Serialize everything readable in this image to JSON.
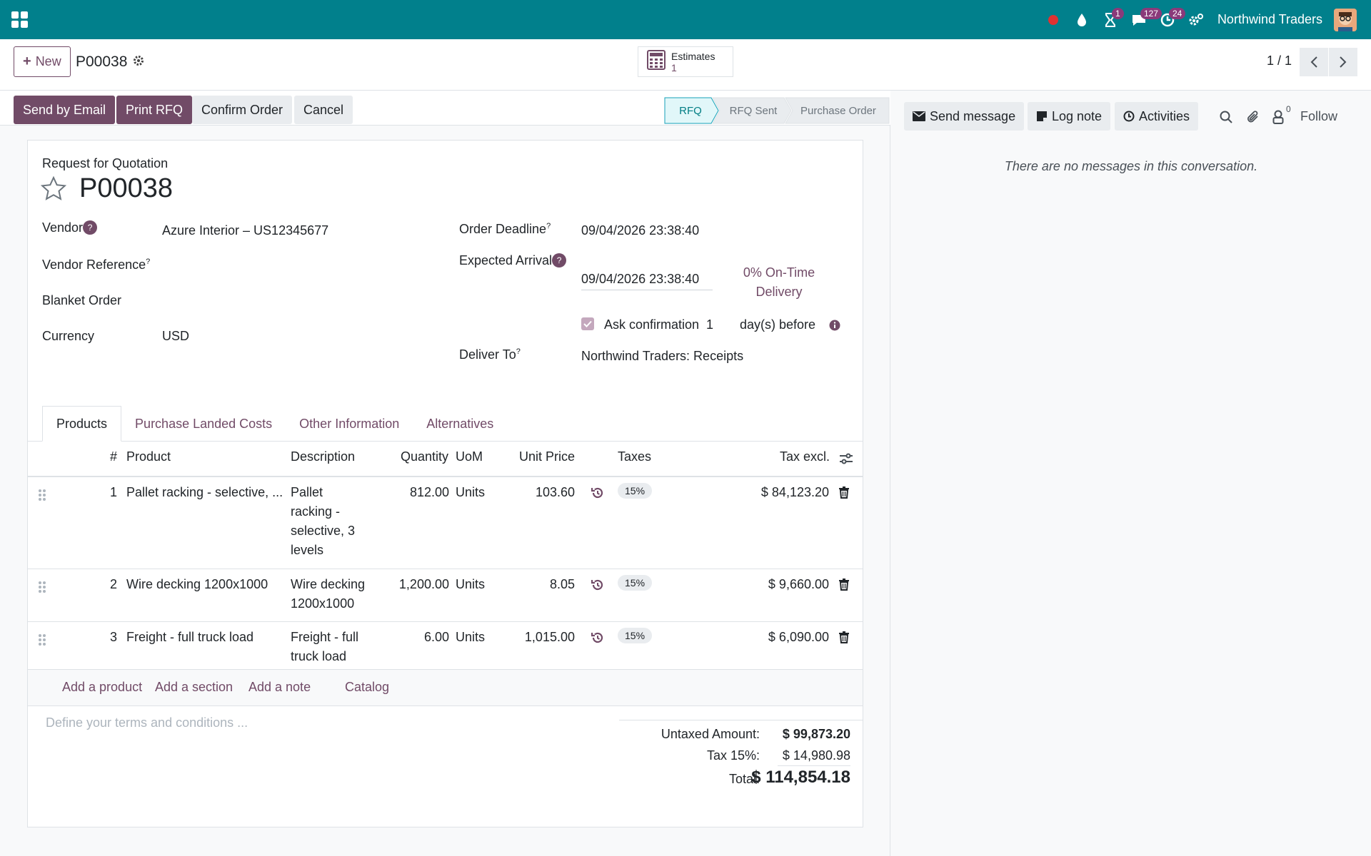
{
  "navbar": {
    "company": "Northwind Traders",
    "badges": {
      "activity": "1",
      "messages": "127",
      "timer": "24"
    }
  },
  "control": {
    "new_label": "New",
    "record_name": "P00038",
    "smart_button": {
      "label": "Estimates",
      "count": "1"
    },
    "pager": "1 / 1"
  },
  "actions": {
    "send_email": "Send by Email",
    "print_rfq": "Print RFQ",
    "confirm": "Confirm Order",
    "cancel": "Cancel"
  },
  "stages": [
    "RFQ",
    "RFQ Sent",
    "Purchase Order"
  ],
  "form": {
    "doc_type": "Request for Quotation",
    "name": "P00038",
    "vendor_label": "Vendor",
    "vendor_value": "Azure Interior – US12345677",
    "vendor_ref_label": "Vendor Reference",
    "blanket_label": "Blanket Order",
    "currency_label": "Currency",
    "currency_value": "USD",
    "order_deadline_label": "Order Deadline",
    "order_deadline_value": "09/04/2026 23:38:40",
    "expected_arrival_label": "Expected Arrival",
    "expected_arrival_value": "09/04/2026 23:38:40",
    "on_time_line1": "0% On-Time",
    "on_time_line2": "Delivery",
    "ask_confirmation_label": "Ask confirmation",
    "ask_confirmation_days": "1",
    "days_before": "day(s) before",
    "deliver_to_label": "Deliver To",
    "deliver_to_value": "Northwind Traders: Receipts",
    "help_mark": "?"
  },
  "tabs": [
    "Products",
    "Purchase Landed Costs",
    "Other Information",
    "Alternatives"
  ],
  "table": {
    "headers": {
      "num": "#",
      "product": "Product",
      "description": "Description",
      "quantity": "Quantity",
      "uom": "UoM",
      "unit_price": "Unit Price",
      "taxes": "Taxes",
      "tax_excl": "Tax excl."
    },
    "rows": [
      {
        "num": "1",
        "product": "Pallet racking - selective, ...",
        "desc1": "Pallet",
        "desc2": "racking -",
        "desc3": "selective, 3",
        "desc4": "levels",
        "quantity": "812.00",
        "uom": "Units",
        "unit_price": "103.60",
        "tax": "15%",
        "subtotal": "$ 84,123.20"
      },
      {
        "num": "2",
        "product": "Wire decking 1200x1000",
        "desc1": "Wire decking",
        "desc2": "1200x1000",
        "quantity": "1,200.00",
        "uom": "Units",
        "unit_price": "8.05",
        "tax": "15%",
        "subtotal": "$ 9,660.00"
      },
      {
        "num": "3",
        "product": "Freight - full truck load",
        "desc1": "Freight - full",
        "desc2": "truck load",
        "quantity": "6.00",
        "uom": "Units",
        "unit_price": "1,015.00",
        "tax": "15%",
        "subtotal": "$ 6,090.00"
      }
    ],
    "add_product": "Add a product",
    "add_section": "Add a section",
    "add_note": "Add a note",
    "catalog": "Catalog"
  },
  "terms_placeholder": "Define your terms and conditions ...",
  "totals": {
    "untaxed_label": "Untaxed Amount:",
    "untaxed_value": "$ 99,873.20",
    "tax_label": "Tax 15%:",
    "tax_value": "$ 14,980.98",
    "total_label": "Total:",
    "total_value": "$ 114,854.18"
  },
  "chatter": {
    "send_message": "Send message",
    "log_note": "Log note",
    "activities": "Activities",
    "followers_count": "0",
    "follow": "Follow",
    "empty": "There are no messages in this conversation."
  },
  "colors": {
    "navbar": "#01808c",
    "primary": "#714b67",
    "stage_active": "#e1f7f9"
  }
}
